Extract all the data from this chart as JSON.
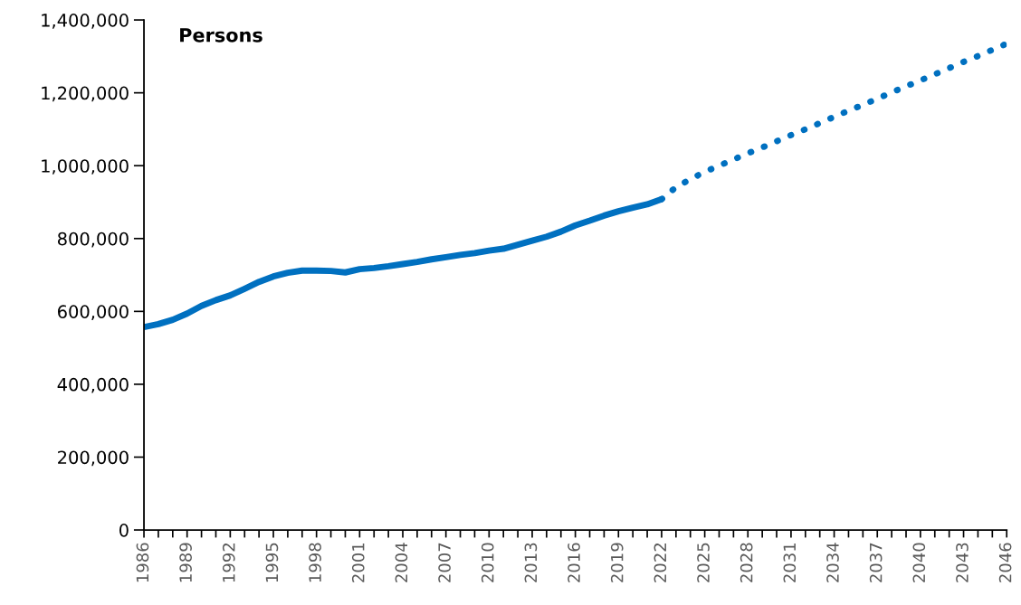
{
  "chart_data": {
    "type": "line",
    "ylabel": "Persons",
    "categories": [
      "1986",
      null,
      null,
      "1989",
      null,
      null,
      "1992",
      null,
      null,
      "1995",
      null,
      null,
      "1998",
      null,
      null,
      "2001",
      null,
      null,
      "2004",
      null,
      null,
      "2007",
      null,
      null,
      "2010",
      null,
      null,
      "2013",
      null,
      null,
      "2016",
      null,
      null,
      "2019",
      null,
      null,
      "2022",
      null,
      null,
      "2025",
      null,
      null,
      "2028",
      null,
      null,
      "2031",
      null,
      null,
      "2034",
      null,
      null,
      "2037",
      null,
      null,
      "2040",
      null,
      null,
      "2043",
      null,
      null,
      "2046"
    ],
    "series": [
      {
        "color": "#0070c0",
        "line_style": "solid",
        "values": [
          557000,
          565000,
          577000,
          594000,
          615000,
          631000,
          644000,
          662000,
          681000,
          696000,
          706000,
          712000,
          712000,
          711000,
          707000,
          716000,
          719000,
          724000,
          730000,
          736000,
          743000,
          749000,
          755000,
          760000,
          767000,
          772000,
          783000,
          794000,
          805000,
          819000,
          836000,
          849000,
          863000,
          875000,
          885000,
          894000,
          908000,
          null,
          null,
          null,
          null,
          null,
          null,
          null,
          null,
          null,
          null,
          null,
          null,
          null,
          null,
          null,
          null,
          null,
          null,
          null,
          null,
          null,
          null,
          null,
          null
        ]
      },
      {
        "color": "#0070c0",
        "line_style": "dotted",
        "values": [
          null,
          null,
          null,
          null,
          null,
          null,
          null,
          null,
          null,
          null,
          null,
          null,
          null,
          null,
          null,
          null,
          null,
          null,
          null,
          null,
          null,
          null,
          null,
          null,
          null,
          null,
          null,
          null,
          null,
          null,
          null,
          null,
          null,
          null,
          null,
          null,
          908000,
          941000,
          963000,
          983000,
          1000000,
          1017000,
          1034000,
          1050000,
          1067000,
          1084000,
          1100000,
          1117000,
          1134000,
          1151000,
          1167000,
          1184000,
          1201000,
          1218000,
          1234000,
          1251000,
          1268000,
          1285000,
          1301000,
          1318000,
          1335000
        ]
      }
    ],
    "ylim": [
      0,
      1400000
    ],
    "yticks": [
      {
        "value": 0,
        "label": "0"
      },
      {
        "value": 200000,
        "label": "200,000"
      },
      {
        "value": 400000,
        "label": "400,000"
      },
      {
        "value": 600000,
        "label": "600,000"
      },
      {
        "value": 800000,
        "label": "800,000"
      },
      {
        "value": 1000000,
        "label": "1,000,000"
      },
      {
        "value": 1200000,
        "label": "1,200,000"
      },
      {
        "value": 1400000,
        "label": "1,400,000"
      }
    ],
    "grid": false,
    "legend": false,
    "marker": "none"
  }
}
